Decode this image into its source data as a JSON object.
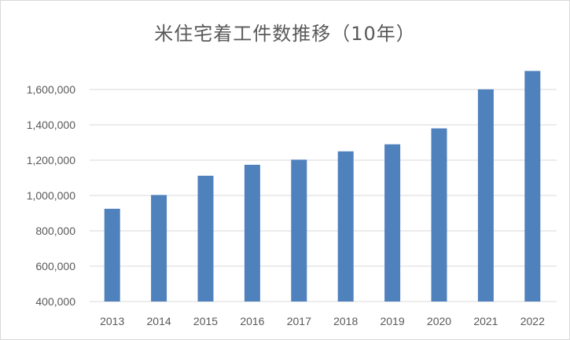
{
  "chart_data": {
    "type": "bar",
    "title": "米住宅着工件数推移（10年）",
    "xlabel": "",
    "ylabel": "",
    "categories": [
      "2013",
      "2014",
      "2015",
      "2016",
      "2017",
      "2018",
      "2019",
      "2020",
      "2021",
      "2022"
    ],
    "values": [
      925000,
      1003000,
      1112000,
      1174000,
      1203000,
      1250000,
      1290000,
      1380000,
      1601000,
      1705000
    ],
    "ylim": [
      400000,
      1700000
    ],
    "yticks": [
      400000,
      600000,
      800000,
      1000000,
      1200000,
      1400000,
      1600000
    ],
    "ytick_labels": [
      "400,000",
      "600,000",
      "800,000",
      "1,000,000",
      "1,200,000",
      "1,400,000",
      "1,600,000"
    ],
    "grid": true,
    "bar_color": "#4f81bd"
  }
}
